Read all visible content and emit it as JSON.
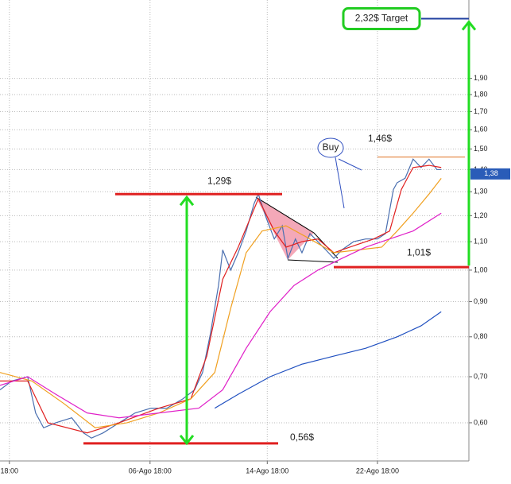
{
  "chart_data": {
    "type": "line",
    "log_scale": true,
    "grid": true,
    "xlim": [
      0,
      100
    ],
    "xticks": [
      {
        "value": 2,
        "label": "18:00"
      },
      {
        "value": 32,
        "label": "06-Ago 18:00"
      },
      {
        "value": 57,
        "label": "14-Ago 18:00"
      },
      {
        "value": 80.5,
        "label": "22-Ago 18:00"
      }
    ],
    "ylim": [
      0.528,
      2.47
    ],
    "yticks": [
      {
        "value": 0.6,
        "label": "0,60"
      },
      {
        "value": 0.7,
        "label": "0,70"
      },
      {
        "value": 0.8,
        "label": "0,80"
      },
      {
        "value": 0.9,
        "label": "0,90"
      },
      {
        "value": 1.0,
        "label": "1,00"
      },
      {
        "value": 1.1,
        "label": "1,10"
      },
      {
        "value": 1.2,
        "label": "1,20"
      },
      {
        "value": 1.3,
        "label": "1,30"
      },
      {
        "value": 1.4,
        "label": "1,40"
      },
      {
        "value": 1.5,
        "label": "1,50"
      },
      {
        "value": 1.6,
        "label": "1,60"
      },
      {
        "value": 1.7,
        "label": "1,70"
      },
      {
        "value": 1.8,
        "label": "1,80"
      },
      {
        "value": 1.9,
        "label": "1,90"
      }
    ],
    "series": [
      {
        "color": "#4a6fb0",
        "x": [
          0,
          2.5,
          5.9,
          7.6,
          9.3,
          11.9,
          15.3,
          17.8,
          19.5,
          22,
          25.4,
          28.8,
          32.2,
          35.6,
          39,
          41.5,
          43.2,
          44.9,
          46.6,
          47.5,
          49.2,
          50.8,
          52.5,
          54.2,
          55.1,
          56.8,
          58.5,
          60.2,
          61.4,
          63,
          64.4,
          66.1,
          67.8,
          69.5,
          71.2,
          72.9,
          75.4,
          78,
          80.5,
          82.2,
          83.9,
          84.7,
          86.4,
          88.1,
          89.8,
          91.5,
          93.2,
          94.1
        ],
        "values": [
          0.67,
          0.69,
          0.7,
          0.62,
          0.59,
          0.6,
          0.61,
          0.58,
          0.57,
          0.58,
          0.6,
          0.62,
          0.63,
          0.63,
          0.65,
          0.67,
          0.71,
          0.81,
          0.95,
          1.07,
          1.0,
          1.06,
          1.14,
          1.25,
          1.29,
          1.19,
          1.11,
          1.16,
          1.04,
          1.11,
          1.06,
          1.13,
          1.1,
          1.07,
          1.04,
          1.07,
          1.1,
          1.11,
          1.11,
          1.13,
          1.31,
          1.34,
          1.36,
          1.45,
          1.41,
          1.45,
          1.4,
          1.4
        ]
      },
      {
        "color": "#e02020",
        "x": [
          0,
          5.9,
          10.2,
          18.6,
          25.4,
          33.9,
          40.7,
          44.1,
          47.5,
          50.8,
          55.1,
          58.5,
          61,
          64.4,
          67.8,
          71.2,
          74.6,
          79.7,
          83.1,
          85.6,
          88.1,
          91.5,
          94.1
        ],
        "values": [
          0.69,
          0.69,
          0.6,
          0.58,
          0.6,
          0.63,
          0.65,
          0.75,
          0.97,
          1.08,
          1.27,
          1.14,
          1.08,
          1.1,
          1.11,
          1.06,
          1.08,
          1.11,
          1.14,
          1.31,
          1.41,
          1.42,
          1.41
        ]
      },
      {
        "color": "#f0a020",
        "x": [
          0,
          6.8,
          13.6,
          20.3,
          27.1,
          33.9,
          40.7,
          45.8,
          49.2,
          52.5,
          55.9,
          61,
          66.1,
          71.2,
          76.3,
          81.4,
          84.7,
          88.1,
          91.5,
          94.1
        ],
        "values": [
          0.71,
          0.69,
          0.64,
          0.59,
          0.6,
          0.62,
          0.65,
          0.71,
          0.88,
          1.06,
          1.14,
          1.16,
          1.11,
          1.06,
          1.07,
          1.08,
          1.14,
          1.21,
          1.29,
          1.36
        ]
      },
      {
        "color": "#e020c8",
        "x": [
          0,
          5.9,
          11.9,
          18.6,
          25.4,
          33.9,
          42.4,
          47.5,
          52.5,
          57.6,
          62.7,
          67.8,
          72.9,
          78,
          83.1,
          88.1,
          94.1
        ],
        "values": [
          0.68,
          0.7,
          0.66,
          0.62,
          0.61,
          0.62,
          0.63,
          0.67,
          0.77,
          0.87,
          0.95,
          1.0,
          1.04,
          1.08,
          1.11,
          1.14,
          1.21
        ]
      },
      {
        "color": "#2050c0",
        "x": [
          45.8,
          50.8,
          57.6,
          64.4,
          71.2,
          78,
          84.7,
          89.8,
          94.1
        ],
        "values": [
          0.63,
          0.66,
          0.7,
          0.73,
          0.75,
          0.77,
          0.8,
          0.83,
          0.87
        ]
      }
    ],
    "annotations": [
      {
        "label": "2,32$ Target",
        "value": 2.32
      },
      {
        "label": "1,46$",
        "value": 1.46
      },
      {
        "label": "1,29$",
        "value": 1.29
      },
      {
        "label": "1,01$",
        "value": 1.01
      },
      {
        "label": "0,56$",
        "value": 0.56
      }
    ],
    "last_price": {
      "value": 1.38,
      "label": "1,38"
    },
    "buy_label": "Buy"
  }
}
